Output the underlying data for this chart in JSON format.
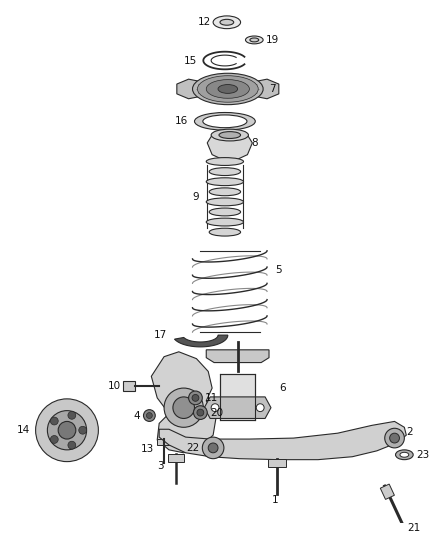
{
  "bg_color": "#ffffff",
  "line_color": "#2a2a2a",
  "label_color": "#111111",
  "fig_width": 4.38,
  "fig_height": 5.33,
  "dpi": 100
}
